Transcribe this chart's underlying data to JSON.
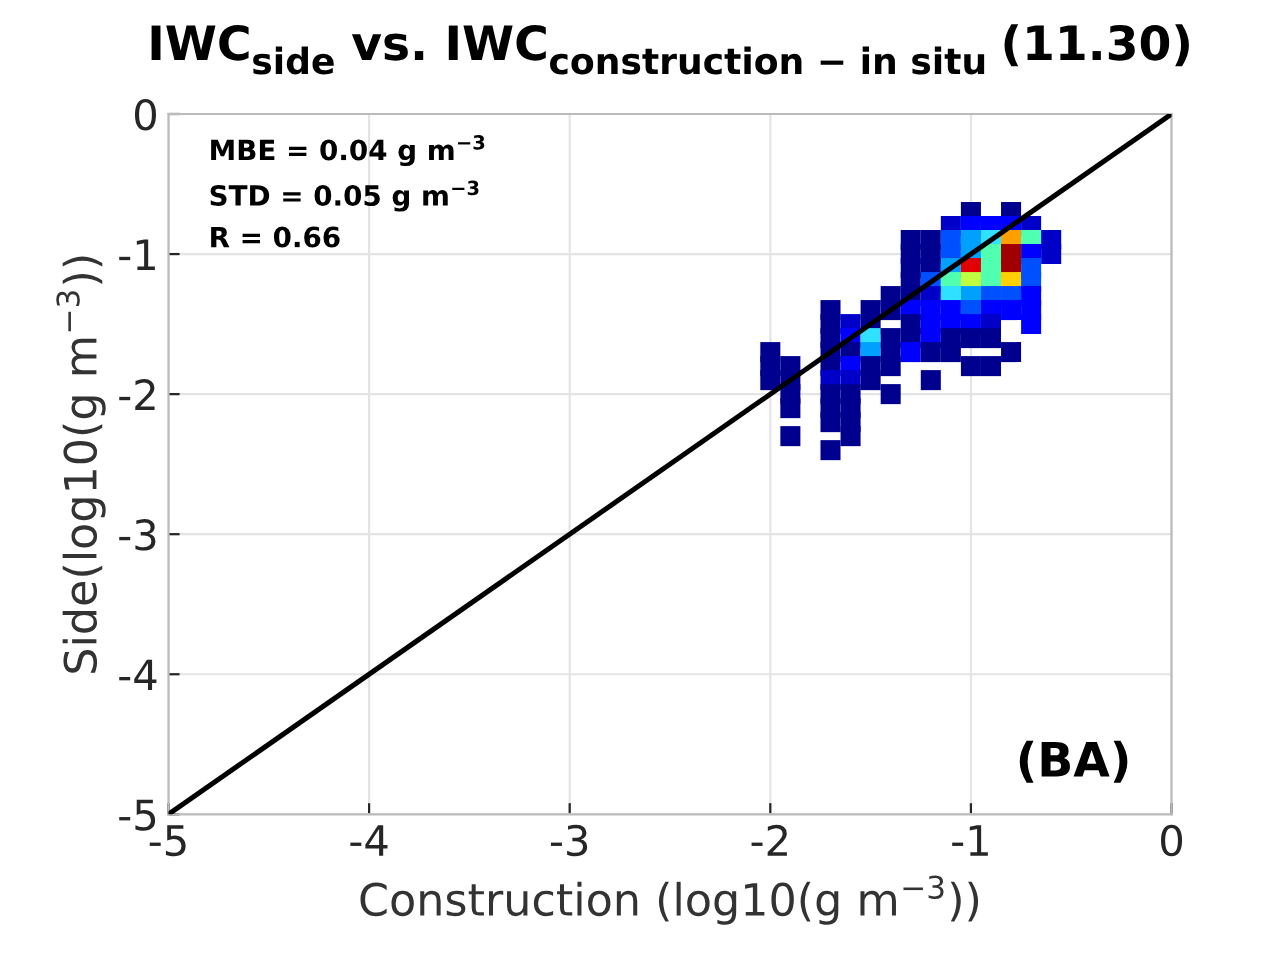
{
  "chart_data": {
    "type": "scatter",
    "title": "IWC$_{side}$ vs. IWC$_{construction − in situ}$ (11.30)",
    "xlabel": "Construction (log10(g m$^{−3}$))",
    "ylabel": "Side(log10(g m$^{−3}$))",
    "annotations": [
      "MBE = 0.04 g m$^{−3}$",
      "STD = 0.05 g m$^{−3}$",
      "R = 0.66",
      "(BA)"
    ],
    "xlim": [
      -5,
      0
    ],
    "ylim": [
      -5,
      0
    ],
    "xticks": [
      -5,
      -4,
      -3,
      -2,
      -1,
      0
    ],
    "yticks": [
      -5,
      -4,
      -3,
      -2,
      -1,
      0
    ],
    "grid": true,
    "series": [
      {
        "type": "scatter",
        "marker": "square",
        "x": [
          -1.0,
          -0.8,
          -1.1,
          -1.0,
          -0.9,
          -0.8,
          -0.7,
          -1.3,
          -1.2,
          -1.1,
          -1.0,
          -0.9,
          -0.8,
          -0.7,
          -0.6,
          -1.3,
          -1.2,
          -1.1,
          -1.0,
          -0.9,
          -0.8,
          -0.7,
          -0.6,
          -1.3,
          -1.2,
          -1.1,
          -1.0,
          -0.9,
          -0.8,
          -0.7,
          -1.3,
          -1.2,
          -1.1,
          -1.0,
          -0.9,
          -0.8,
          -0.7,
          -1.4,
          -1.3,
          -1.2,
          -1.1,
          -1.0,
          -0.9,
          -0.8,
          -0.7,
          -1.7,
          -1.5,
          -1.4,
          -1.3,
          -1.2,
          -1.1,
          -1.0,
          -0.9,
          -0.8,
          -0.7,
          -1.7,
          -1.6,
          -1.5,
          -1.3,
          -1.2,
          -1.1,
          -1.0,
          -0.9,
          -0.7,
          -1.7,
          -1.6,
          -1.5,
          -1.4,
          -1.3,
          -1.2,
          -1.1,
          -1.0,
          -0.9,
          -2.0,
          -1.7,
          -1.6,
          -1.5,
          -1.4,
          -1.3,
          -1.2,
          -1.1,
          -0.8,
          -2.0,
          -1.9,
          -1.7,
          -1.6,
          -1.5,
          -1.4,
          -1.0,
          -0.9,
          -2.0,
          -1.9,
          -1.7,
          -1.6,
          -1.5,
          -1.2,
          -1.9,
          -1.7,
          -1.6,
          -1.4,
          -1.9,
          -1.7,
          -1.6,
          -1.7,
          -1.6,
          -1.9,
          -1.6,
          -1.7
        ],
        "values": [
          -0.7,
          -0.7,
          -0.8,
          -0.8,
          -0.8,
          -0.8,
          -0.8,
          -0.9,
          -0.9,
          -0.9,
          -0.9,
          -0.9,
          -0.9,
          -0.9,
          -0.9,
          -1.0,
          -1.0,
          -1.0,
          -1.0,
          -1.0,
          -1.0,
          -1.0,
          -1.0,
          -1.1,
          -1.1,
          -1.1,
          -1.1,
          -1.1,
          -1.1,
          -1.1,
          -1.2,
          -1.2,
          -1.2,
          -1.2,
          -1.2,
          -1.2,
          -1.2,
          -1.3,
          -1.3,
          -1.3,
          -1.3,
          -1.3,
          -1.3,
          -1.3,
          -1.3,
          -1.4,
          -1.4,
          -1.4,
          -1.4,
          -1.4,
          -1.4,
          -1.4,
          -1.4,
          -1.4,
          -1.4,
          -1.5,
          -1.5,
          -1.5,
          -1.5,
          -1.5,
          -1.5,
          -1.5,
          -1.5,
          -1.5,
          -1.6,
          -1.6,
          -1.6,
          -1.6,
          -1.6,
          -1.6,
          -1.6,
          -1.6,
          -1.6,
          -1.7,
          -1.7,
          -1.7,
          -1.7,
          -1.7,
          -1.7,
          -1.7,
          -1.7,
          -1.7,
          -1.8,
          -1.8,
          -1.8,
          -1.8,
          -1.8,
          -1.8,
          -1.8,
          -1.8,
          -1.9,
          -1.9,
          -1.9,
          -1.9,
          -1.9,
          -1.9,
          -2.0,
          -2.0,
          -2.0,
          -2.0,
          -2.1,
          -2.1,
          -2.1,
          -2.2,
          -2.2,
          -2.3,
          -2.3,
          -2.4
        ],
        "colors": [
          "#00008f",
          "#00008f",
          "#0000c8",
          "#0000ff",
          "#0000ff",
          "#0000ff",
          "#0000c8",
          "#00008f",
          "#00008f",
          "#0050ff",
          "#00a0ff",
          "#30e0ff",
          "#ffa000",
          "#50ffb0",
          "#0000c8",
          "#00008f",
          "#00008f",
          "#0050ff",
          "#00a0ff",
          "#50ffb0",
          "#a00000",
          "#0000ff",
          "#0000c8",
          "#00008f",
          "#00008f",
          "#00a0ff",
          "#e00000",
          "#50ffb0",
          "#a00000",
          "#0050ff",
          "#00008f",
          "#0050ff",
          "#50ffb0",
          "#c0ff40",
          "#50ffb0",
          "#ffd000",
          "#0050ff",
          "#00008f",
          "#00008f",
          "#0000c8",
          "#30e0ff",
          "#00a0ff",
          "#0050ff",
          "#0050ff",
          "#0000ff",
          "#00008f",
          "#00008f",
          "#00008f",
          "#0000ff",
          "#0000ff",
          "#0000ff",
          "#0050ff",
          "#0000ff",
          "#0000ff",
          "#0000ff",
          "#00008f",
          "#0000c8",
          "#00008f",
          "#00008f",
          "#0000ff",
          "#0000ff",
          "#0000ff",
          "#0000c8",
          "#0000ff",
          "#00008f",
          "#0000ff",
          "#30e0ff",
          "#00008f",
          "#00008f",
          "#0000ff",
          "#00008f",
          "#00008f",
          "#00008f",
          "#00008f",
          "#00008f",
          "#00008f",
          "#00a0ff",
          "#00008f",
          "#0000ff",
          "#00008f",
          "#00008f",
          "#00008f",
          "#00008f",
          "#00008f",
          "#00008f",
          "#0000ff",
          "#00008f",
          "#00008f",
          "#00008f",
          "#00008f",
          "#00008f",
          "#00008f",
          "#0000c8",
          "#0000c8",
          "#00008f",
          "#00008f",
          "#00008f",
          "#00008f",
          "#00008f",
          "#00008f",
          "#00008f",
          "#00008f",
          "#00008f",
          "#00008f",
          "#00008f",
          "#00008f",
          "#00008f",
          "#00008f"
        ]
      },
      {
        "type": "line",
        "x": [
          -5,
          0
        ],
        "values": [
          -5,
          0
        ],
        "color": "#000000",
        "line_style": "solid"
      }
    ]
  }
}
